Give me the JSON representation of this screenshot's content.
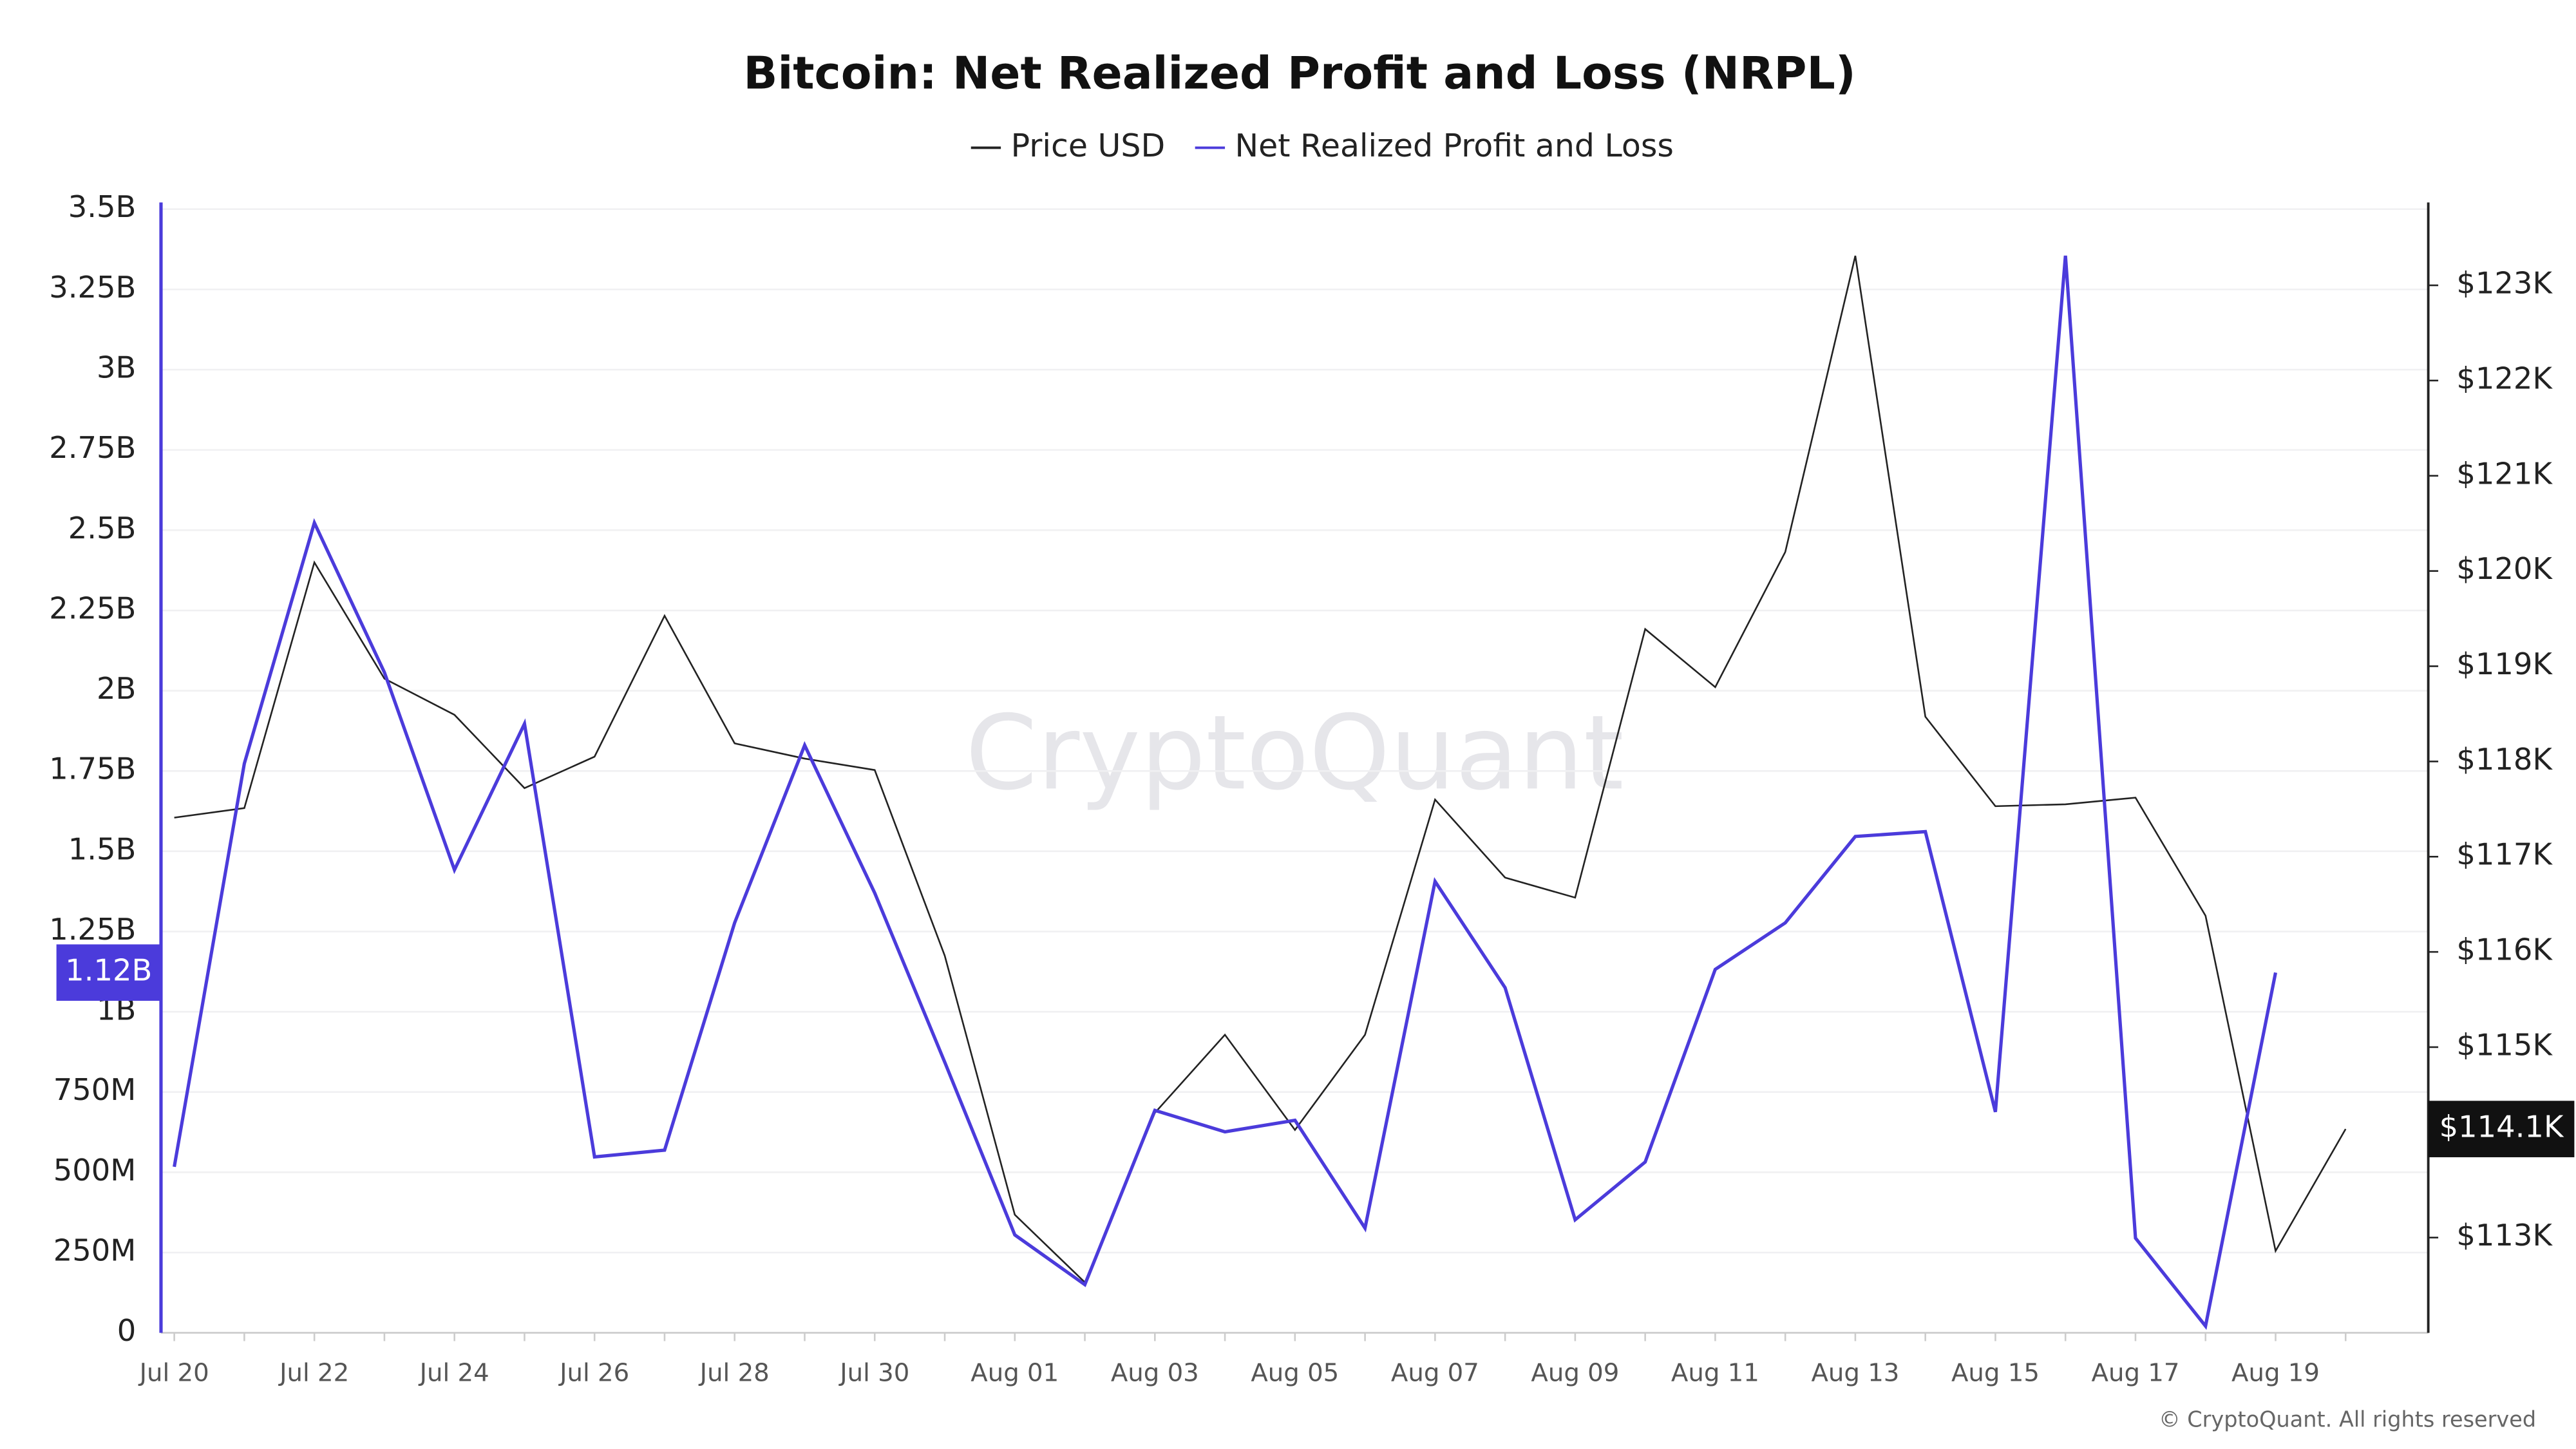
{
  "chart_data": {
    "type": "line",
    "title": "Bitcoin: Net Realized Profit and Loss (NRPL)",
    "watermark": "CryptoQuant",
    "footer": "© CryptoQuant. All rights reserved",
    "categories": [
      "Jul 20",
      null,
      "Jul 22",
      null,
      "Jul 24",
      null,
      "Jul 26",
      null,
      "Jul 28",
      null,
      "Jul 30",
      null,
      "Aug 01",
      null,
      "Aug 03",
      null,
      "Aug 05",
      null,
      "Aug 07",
      null,
      "Aug 09",
      null,
      "Aug 11",
      null,
      "Aug 13",
      null,
      "Aug 15",
      null,
      "Aug 17",
      null,
      "Aug 19",
      null
    ],
    "series": [
      {
        "name": "Price USD",
        "color": "#222222",
        "axis": "y2",
        "values": [
          117410,
          117510,
          120090,
          118870,
          118490,
          117720,
          118050,
          119530,
          118190,
          118030,
          117910,
          115960,
          113240,
          112530,
          114310,
          115130,
          114130,
          115130,
          117600,
          116780,
          116570,
          119390,
          118780,
          120200,
          123310,
          118470,
          117530,
          117550,
          117620,
          116380,
          112860,
          114140
        ],
        "value_labels": [
          null,
          null,
          null,
          null,
          null,
          null,
          null,
          null,
          null,
          null,
          null,
          null,
          null,
          null,
          null,
          null,
          null,
          null,
          null,
          null,
          null,
          null,
          null,
          null,
          null,
          null,
          null,
          null,
          null,
          null,
          null,
          "$114.1K"
        ]
      },
      {
        "name": "Net Realized Profit and Loss",
        "color": "#4b3bdb",
        "values": [
          517000000,
          1773000000,
          2523000000,
          2057000000,
          1442000000,
          1897000000,
          548000000,
          569000000,
          1277000000,
          1830000000,
          1370000000,
          843000000,
          305000000,
          150000000,
          693000000,
          626000000,
          662000000,
          326000000,
          1406000000,
          1075000000,
          352000000,
          532000000,
          1132000000,
          1277000000,
          1546000000,
          1561000000,
          688000000,
          3355000000,
          295000000,
          21000000,
          1122000000,
          null
        ],
        "value_labels": [
          null,
          null,
          null,
          null,
          null,
          null,
          null,
          null,
          null,
          null,
          null,
          null,
          null,
          null,
          null,
          null,
          null,
          null,
          null,
          null,
          null,
          null,
          null,
          null,
          null,
          null,
          null,
          null,
          null,
          null,
          "1.12B",
          null
        ]
      }
    ],
    "ylim": [
      0,
      3500000000
    ],
    "yticks": [
      0,
      {
        "value": 250000000,
        "label": "250M"
      },
      {
        "value": 500000000,
        "label": "500M"
      },
      {
        "value": 750000000,
        "label": "750M"
      },
      {
        "value": 1000000000,
        "label": "1B"
      },
      {
        "value": 1250000000,
        "label": "1.25B"
      },
      {
        "value": 1500000000,
        "label": "1.5B"
      },
      {
        "value": 1750000000,
        "label": "1.75B"
      },
      {
        "value": 2000000000,
        "label": "2B"
      },
      {
        "value": 2250000000,
        "label": "2.25B"
      },
      {
        "value": 2500000000,
        "label": "2.5B"
      },
      {
        "value": 2750000000,
        "label": "2.75B"
      },
      {
        "value": 3000000000,
        "label": "3B"
      },
      {
        "value": 3250000000,
        "label": "3.25B"
      },
      {
        "value": 3500000000,
        "label": "3.5B"
      }
    ],
    "y2lim": [
      112000,
      123800
    ],
    "y2ticks": [
      {
        "value": 113000,
        "label": "$113K"
      },
      {
        "value": 114000,
        "label": "$114K"
      },
      {
        "value": 115000,
        "label": "$115K"
      },
      {
        "value": 116000,
        "label": "$116K"
      },
      {
        "value": 117000,
        "label": "$117K"
      },
      {
        "value": 118000,
        "label": "$118K"
      },
      {
        "value": 119000,
        "label": "$119K"
      },
      {
        "value": 120000,
        "label": "$120K"
      },
      {
        "value": 121000,
        "label": "$121K"
      },
      {
        "value": 122000,
        "label": "$122K"
      },
      {
        "value": 123000,
        "label": "$123K"
      }
    ],
    "grid": true,
    "legend": "top"
  }
}
